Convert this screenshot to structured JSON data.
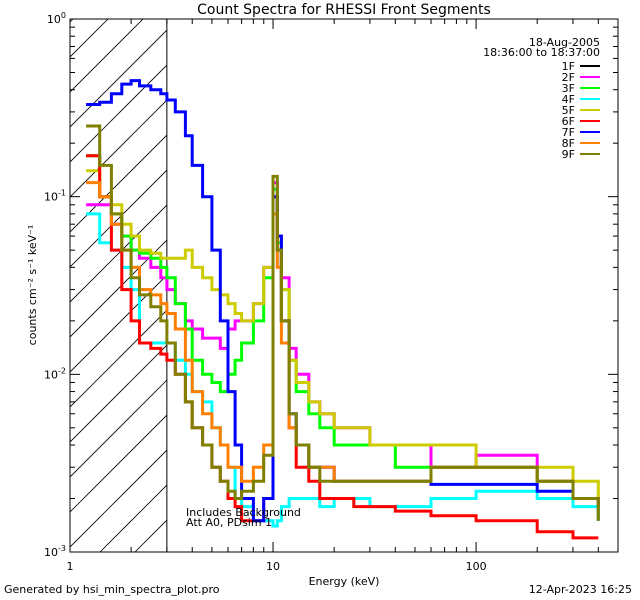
{
  "chart_data": {
    "type": "line",
    "title": "Count Spectra for RHESSI Front Segments",
    "xlabel": "Energy (keV)",
    "ylabel": "counts cm⁻² s⁻¹ keV⁻¹",
    "xscale": "log",
    "yscale": "log",
    "xlim": [
      1,
      500
    ],
    "ylim": [
      0.001,
      1
    ],
    "x_tick_labels": [
      {
        "value": 10,
        "label": "10"
      },
      {
        "value": 100,
        "label": "100"
      }
    ],
    "x_edge_label": "1",
    "y_tick_labels": [
      {
        "value": 0.001,
        "label": "10",
        "exp": "-3"
      },
      {
        "value": 0.01,
        "label": "10",
        "exp": "-2"
      },
      {
        "value": 0.1,
        "label": "10",
        "exp": "-1"
      },
      {
        "value": 1,
        "label": "10",
        "exp": "0"
      }
    ],
    "legend": {
      "position": "top-right",
      "date": "18-Aug-2005",
      "time_range": "18:36:00 to 18:37:00"
    },
    "annotations": [
      "Includes Background",
      "Att A0, PDsim 1"
    ],
    "shaded_region": {
      "x_from": 1,
      "x_to": 3,
      "style": "hatched"
    },
    "series": [
      {
        "name": "1F",
        "color": "#000000",
        "x": [],
        "y": []
      },
      {
        "name": "2F",
        "color": "#ff00ff",
        "x": [
          1.2,
          1.4,
          1.6,
          1.8,
          2.0,
          2.2,
          2.5,
          2.8,
          3.0,
          3.3,
          3.7,
          4.0,
          4.5,
          5.0,
          5.5,
          6.0,
          6.5,
          7.0,
          8.0,
          9.0,
          10.0,
          10.5,
          11.0,
          12.0,
          13.0,
          15.0,
          17.0,
          20.0,
          25.0,
          30.0,
          40.0,
          60.0,
          100.0,
          200.0,
          300.0,
          400.0
        ],
        "y": [
          0.09,
          0.09,
          0.07,
          0.06,
          0.05,
          0.045,
          0.04,
          0.035,
          0.03,
          0.025,
          0.02,
          0.018,
          0.016,
          0.016,
          0.014,
          0.018,
          0.02,
          0.02,
          0.025,
          0.04,
          0.12,
          0.06,
          0.035,
          0.014,
          0.01,
          0.007,
          0.006,
          0.005,
          0.005,
          0.004,
          0.004,
          0.003,
          0.0035,
          0.0025,
          0.002,
          0.0015
        ]
      },
      {
        "name": "3F",
        "color": "#00ff00",
        "x": [
          1.2,
          1.4,
          1.6,
          1.8,
          2.0,
          2.2,
          2.5,
          2.8,
          3.0,
          3.3,
          3.7,
          4.0,
          4.5,
          5.0,
          5.5,
          6.0,
          6.5,
          7.0,
          8.0,
          9.0,
          10.0,
          10.5,
          11.0,
          12.0,
          13.0,
          15.0,
          17.0,
          20.0,
          25.0,
          30.0,
          40.0,
          60.0,
          100.0,
          200.0,
          300.0,
          400.0
        ],
        "y": [
          0.17,
          0.1,
          0.08,
          0.06,
          0.05,
          0.048,
          0.045,
          0.04,
          0.035,
          0.025,
          0.018,
          0.012,
          0.01,
          0.009,
          0.008,
          0.01,
          0.012,
          0.015,
          0.02,
          0.035,
          0.11,
          0.055,
          0.03,
          0.012,
          0.008,
          0.006,
          0.005,
          0.004,
          0.004,
          0.004,
          0.003,
          0.003,
          0.003,
          0.0025,
          0.002,
          0.0015
        ]
      },
      {
        "name": "4F",
        "color": "#00ffff",
        "x": [
          1.2,
          1.4,
          1.6,
          1.8,
          2.0,
          2.2,
          2.5,
          2.8,
          3.0,
          3.3,
          3.7,
          4.0,
          4.5,
          5.0,
          5.5,
          6.0,
          6.5,
          7.0,
          8.0,
          9.0,
          10.0,
          10.5,
          11.0,
          12.0,
          13.0,
          15.0,
          17.0,
          20.0,
          25.0,
          30.0,
          40.0,
          60.0,
          100.0,
          200.0,
          300.0,
          400.0
        ],
        "y": [
          0.08,
          0.055,
          0.05,
          0.04,
          0.03,
          0.015,
          0.015,
          0.015,
          0.015,
          0.012,
          0.01,
          0.008,
          0.007,
          0.005,
          0.004,
          0.003,
          0.002,
          0.0018,
          0.0015,
          0.0015,
          0.0014,
          0.0015,
          0.0018,
          0.002,
          0.002,
          0.002,
          0.0018,
          0.002,
          0.002,
          0.0018,
          0.0018,
          0.002,
          0.0022,
          0.002,
          0.0018,
          0.0015
        ]
      },
      {
        "name": "5F",
        "color": "#cccc00",
        "x": [
          1.2,
          1.4,
          1.6,
          1.8,
          2.0,
          2.2,
          2.5,
          2.8,
          3.0,
          3.3,
          3.7,
          4.0,
          4.5,
          5.0,
          5.5,
          6.0,
          6.5,
          7.0,
          8.0,
          9.0,
          10.0,
          10.5,
          11.0,
          12.0,
          13.0,
          15.0,
          17.0,
          20.0,
          25.0,
          30.0,
          40.0,
          60.0,
          100.0,
          200.0,
          300.0,
          400.0
        ],
        "y": [
          0.14,
          0.1,
          0.09,
          0.07,
          0.06,
          0.05,
          0.048,
          0.045,
          0.045,
          0.045,
          0.05,
          0.04,
          0.035,
          0.03,
          0.028,
          0.025,
          0.022,
          0.02,
          0.025,
          0.04,
          0.1,
          0.06,
          0.03,
          0.012,
          0.009,
          0.007,
          0.006,
          0.005,
          0.005,
          0.004,
          0.004,
          0.004,
          0.003,
          0.003,
          0.0025,
          0.002
        ]
      },
      {
        "name": "6F",
        "color": "#ff0000",
        "x": [
          1.2,
          1.4,
          1.6,
          1.8,
          2.0,
          2.2,
          2.5,
          2.8,
          3.0,
          3.3,
          3.7,
          4.0,
          4.5,
          5.0,
          5.5,
          6.0,
          6.5,
          7.0,
          8.0,
          9.0,
          10.0,
          10.5,
          11.0,
          12.0,
          13.0,
          15.0,
          17.0,
          20.0,
          25.0,
          30.0,
          40.0,
          60.0,
          100.0,
          200.0,
          300.0,
          400.0
        ],
        "y": [
          0.17,
          0.1,
          0.05,
          0.03,
          0.02,
          0.015,
          0.014,
          0.013,
          0.012,
          0.01,
          0.007,
          0.005,
          0.004,
          0.003,
          0.0025,
          0.002,
          0.0018,
          0.0015,
          0.0015,
          0.002,
          0.1,
          0.05,
          0.02,
          0.005,
          0.003,
          0.0025,
          0.002,
          0.002,
          0.0018,
          0.0018,
          0.0017,
          0.0016,
          0.0015,
          0.0013,
          0.0012,
          0.0012
        ]
      },
      {
        "name": "7F",
        "color": "#0000ff",
        "x": [
          1.2,
          1.4,
          1.6,
          1.8,
          2.0,
          2.2,
          2.5,
          2.8,
          3.0,
          3.3,
          3.7,
          4.0,
          4.5,
          5.0,
          5.5,
          6.0,
          6.5,
          7.0,
          8.0,
          9.0,
          10.0,
          10.5,
          11.0,
          12.0,
          13.0,
          15.0,
          17.0,
          20.0,
          25.0,
          30.0,
          40.0,
          60.0,
          100.0,
          200.0,
          300.0,
          400.0
        ],
        "y": [
          0.33,
          0.34,
          0.38,
          0.43,
          0.45,
          0.42,
          0.4,
          0.38,
          0.35,
          0.3,
          0.22,
          0.15,
          0.1,
          0.05,
          0.02,
          0.008,
          0.004,
          0.002,
          0.0015,
          0.002,
          0.1,
          0.06,
          0.02,
          0.006,
          0.004,
          0.003,
          0.003,
          0.0025,
          0.0025,
          0.0025,
          0.0025,
          0.0024,
          0.0024,
          0.0022,
          0.002,
          0.0018
        ]
      },
      {
        "name": "8F",
        "color": "#ff8000",
        "x": [
          1.2,
          1.4,
          1.6,
          1.8,
          2.0,
          2.2,
          2.5,
          2.8,
          3.0,
          3.3,
          3.7,
          4.0,
          4.5,
          5.0,
          5.5,
          6.0,
          6.5,
          7.0,
          8.0,
          9.0,
          10.0,
          10.5,
          11.0,
          12.0,
          13.0,
          15.0,
          17.0,
          20.0,
          25.0,
          30.0,
          40.0,
          60.0,
          100.0,
          200.0,
          300.0,
          400.0
        ],
        "y": [
          0.12,
          0.1,
          0.07,
          0.05,
          0.04,
          0.03,
          0.028,
          0.025,
          0.022,
          0.018,
          0.012,
          0.008,
          0.006,
          0.005,
          0.004,
          0.003,
          0.003,
          0.0025,
          0.003,
          0.004,
          0.08,
          0.04,
          0.015,
          0.005,
          0.004,
          0.003,
          0.003,
          0.0025,
          0.0025,
          0.0025,
          0.0025,
          0.003,
          0.003,
          0.0025,
          0.002,
          0.0018
        ]
      },
      {
        "name": "9F",
        "color": "#808000",
        "x": [
          1.2,
          1.4,
          1.6,
          1.8,
          2.0,
          2.2,
          2.5,
          2.8,
          3.0,
          3.3,
          3.7,
          4.0,
          4.5,
          5.0,
          5.5,
          6.0,
          6.5,
          7.0,
          8.0,
          9.0,
          10.0,
          10.5,
          11.0,
          12.0,
          13.0,
          15.0,
          17.0,
          20.0,
          25.0,
          30.0,
          40.0,
          60.0,
          100.0,
          200.0,
          300.0,
          400.0
        ],
        "y": [
          0.25,
          0.15,
          0.08,
          0.05,
          0.035,
          0.028,
          0.024,
          0.02,
          0.015,
          0.01,
          0.007,
          0.005,
          0.004,
          0.003,
          0.0025,
          0.0022,
          0.002,
          0.0022,
          0.0025,
          0.0035,
          0.13,
          0.05,
          0.02,
          0.006,
          0.004,
          0.003,
          0.0025,
          0.0025,
          0.0025,
          0.0025,
          0.0025,
          0.003,
          0.003,
          0.0025,
          0.002,
          0.0015
        ]
      }
    ]
  },
  "footer": {
    "generated_by": "Generated by hsi_min_spectra_plot.pro",
    "timestamp": "12-Apr-2023 16:25"
  }
}
